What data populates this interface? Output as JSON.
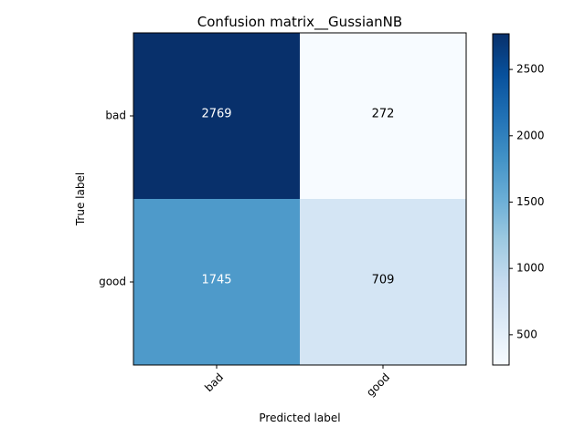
{
  "chart_data": {
    "type": "heatmap",
    "title": "Confusion matrix__GussianNB",
    "xlabel": "Predicted label",
    "ylabel": "True label",
    "x_categories": [
      "bad",
      "good"
    ],
    "y_categories": [
      "bad",
      "good"
    ],
    "values": [
      [
        2769,
        272
      ],
      [
        1745,
        709
      ]
    ],
    "colormap": "Blues",
    "color_range": [
      272,
      2769
    ],
    "colorbar_ticks": [
      500,
      1000,
      1500,
      2000,
      2500
    ],
    "cell_text_colors": {
      "on_dark": "#ffffff",
      "on_light": "#000000"
    },
    "grid": false
  }
}
